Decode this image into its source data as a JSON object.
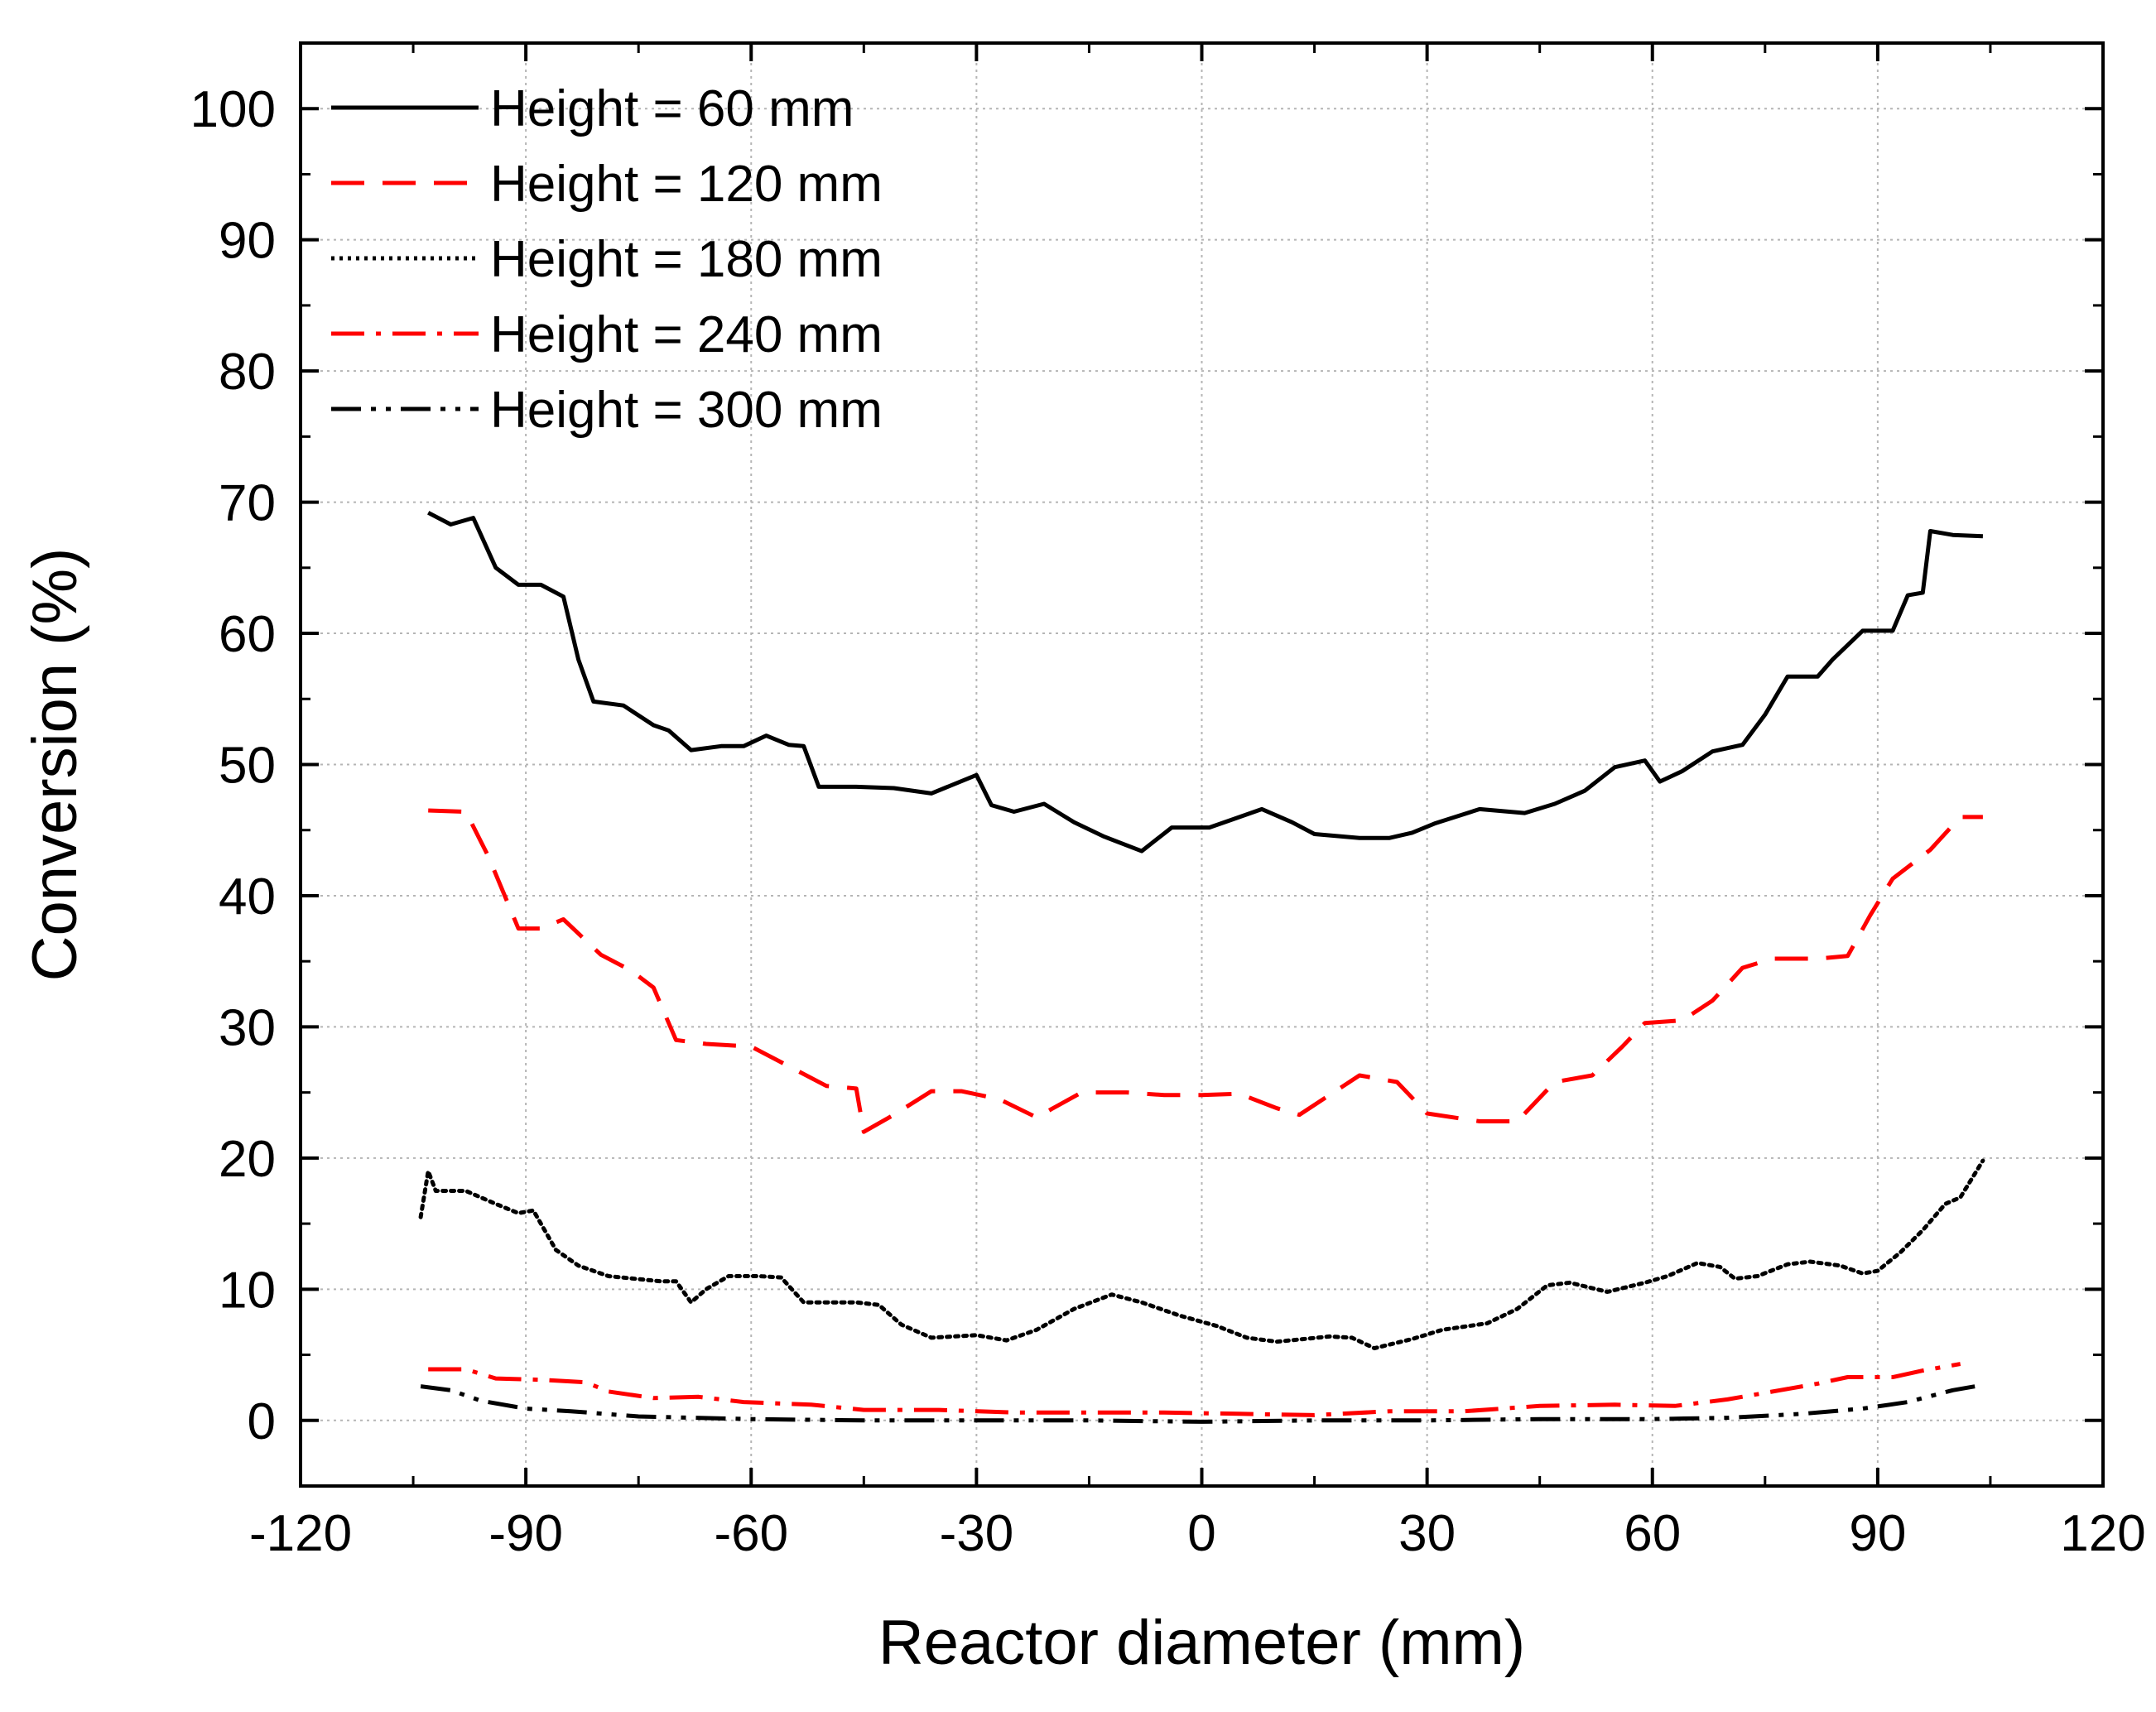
{
  "chart_data": {
    "type": "line",
    "title": "",
    "xlabel": "Reactor diameter (mm)",
    "ylabel": "Conversion (%)",
    "xlim": [
      -120,
      120
    ],
    "ylim": [
      -5,
      105
    ],
    "xticks": [
      "-120",
      "-90",
      "-60",
      "-30",
      "0",
      "30",
      "60",
      "90",
      "120"
    ],
    "yticks": [
      "0",
      "10",
      "20",
      "30",
      "40",
      "50",
      "60",
      "70",
      "80",
      "90",
      "100"
    ],
    "grid": true,
    "legend_position": "top-left",
    "series": [
      {
        "name": "Height = 60 mm",
        "color": "#000000",
        "style": "solid",
        "points": [
          [
            -103,
            69.2
          ],
          [
            -100,
            68.3
          ],
          [
            -97,
            68.8
          ],
          [
            -94,
            65
          ],
          [
            -91,
            63.7
          ],
          [
            -88,
            63.7
          ],
          [
            -85,
            62.8
          ],
          [
            -83,
            58
          ],
          [
            -81,
            54.8
          ],
          [
            -77,
            54.5
          ],
          [
            -73,
            53
          ],
          [
            -71,
            52.6
          ],
          [
            -68,
            51.1
          ],
          [
            -64,
            51.4
          ],
          [
            -61,
            51.4
          ],
          [
            -58,
            52.2
          ],
          [
            -55,
            51.5
          ],
          [
            -53,
            51.4
          ],
          [
            -51,
            48.3
          ],
          [
            -46,
            48.3
          ],
          [
            -41,
            48.2
          ],
          [
            -36,
            47.8
          ],
          [
            -30,
            49.2
          ],
          [
            -28,
            46.9
          ],
          [
            -25,
            46.4
          ],
          [
            -21,
            47
          ],
          [
            -17,
            45.6
          ],
          [
            -13,
            44.5
          ],
          [
            -8,
            43.4
          ],
          [
            -4,
            45.2
          ],
          [
            1,
            45.2
          ],
          [
            4,
            45.8
          ],
          [
            8,
            46.6
          ],
          [
            12,
            45.6
          ],
          [
            15,
            44.7
          ],
          [
            21,
            44.4
          ],
          [
            25,
            44.4
          ],
          [
            28,
            44.8
          ],
          [
            31,
            45.5
          ],
          [
            37,
            46.6
          ],
          [
            43,
            46.3
          ],
          [
            47,
            47
          ],
          [
            51,
            48
          ],
          [
            55,
            49.8
          ],
          [
            59,
            50.3
          ],
          [
            61,
            48.7
          ],
          [
            64,
            49.5
          ],
          [
            68,
            51
          ],
          [
            72,
            51.5
          ],
          [
            75,
            53.8
          ],
          [
            78,
            56.7
          ],
          [
            82,
            56.7
          ],
          [
            84,
            58
          ],
          [
            88,
            60.2
          ],
          [
            92,
            60.2
          ],
          [
            94,
            62.9
          ],
          [
            96,
            63.1
          ],
          [
            97,
            67.8
          ],
          [
            100,
            67.5
          ],
          [
            104,
            67.4
          ]
        ]
      },
      {
        "name": "Height = 120 mm",
        "color": "#ff0000",
        "style": "dashed",
        "points": [
          [
            -103,
            46.5
          ],
          [
            -98,
            46.4
          ],
          [
            -95,
            43
          ],
          [
            -91,
            37.5
          ],
          [
            -88,
            37.5
          ],
          [
            -85,
            38.2
          ],
          [
            -80,
            35.5
          ],
          [
            -76,
            34.3
          ],
          [
            -73,
            33
          ],
          [
            -70,
            29
          ],
          [
            -66,
            28.7
          ],
          [
            -60,
            28.5
          ],
          [
            -55,
            27
          ],
          [
            -50,
            25.5
          ],
          [
            -46,
            25.3
          ],
          [
            -45,
            22
          ],
          [
            -41,
            23.3
          ],
          [
            -36,
            25.1
          ],
          [
            -32,
            25.1
          ],
          [
            -27,
            24.5
          ],
          [
            -22,
            23.1
          ],
          [
            -16,
            25
          ],
          [
            -10,
            25
          ],
          [
            -5,
            24.8
          ],
          [
            0,
            24.8
          ],
          [
            5,
            24.9
          ],
          [
            10,
            23.8
          ],
          [
            13,
            23.3
          ],
          [
            17,
            24.8
          ],
          [
            21,
            26.3
          ],
          [
            26,
            25.8
          ],
          [
            30,
            23.4
          ],
          [
            37,
            22.8
          ],
          [
            42,
            22.8
          ],
          [
            47,
            25.8
          ],
          [
            52,
            26.3
          ],
          [
            56,
            28.5
          ],
          [
            59,
            30.3
          ],
          [
            64,
            30.5
          ],
          [
            68,
            32
          ],
          [
            72,
            34.5
          ],
          [
            76,
            35.2
          ],
          [
            82,
            35.2
          ],
          [
            86,
            35.4
          ],
          [
            89,
            38.5
          ],
          [
            92,
            41.3
          ],
          [
            97,
            43.5
          ],
          [
            101,
            46
          ],
          [
            104,
            46
          ]
        ]
      },
      {
        "name": "Height = 180 mm",
        "color": "#000000",
        "style": "dotted",
        "points": [
          [
            -104,
            15.5
          ],
          [
            -103,
            19
          ],
          [
            -102,
            17.5
          ],
          [
            -98,
            17.5
          ],
          [
            -94,
            16.5
          ],
          [
            -91,
            15.8
          ],
          [
            -89,
            16
          ],
          [
            -86,
            13
          ],
          [
            -83,
            11.8
          ],
          [
            -79,
            11
          ],
          [
            -72,
            10.6
          ],
          [
            -70,
            10.6
          ],
          [
            -68,
            9
          ],
          [
            -66,
            10
          ],
          [
            -63,
            11
          ],
          [
            -59,
            11
          ],
          [
            -56,
            10.9
          ],
          [
            -53,
            9
          ],
          [
            -46,
            9
          ],
          [
            -43,
            8.8
          ],
          [
            -40,
            7.3
          ],
          [
            -36,
            6.3
          ],
          [
            -30,
            6.5
          ],
          [
            -26,
            6.1
          ],
          [
            -22,
            6.9
          ],
          [
            -17,
            8.5
          ],
          [
            -12,
            9.6
          ],
          [
            -8,
            9
          ],
          [
            -3,
            8
          ],
          [
            2,
            7.2
          ],
          [
            6,
            6.3
          ],
          [
            10,
            6
          ],
          [
            17,
            6.4
          ],
          [
            20,
            6.3
          ],
          [
            23,
            5.5
          ],
          [
            28,
            6.2
          ],
          [
            32,
            6.9
          ],
          [
            38,
            7.4
          ],
          [
            42,
            8.5
          ],
          [
            46,
            10.3
          ],
          [
            49,
            10.5
          ],
          [
            54,
            9.8
          ],
          [
            59,
            10.5
          ],
          [
            62,
            11
          ],
          [
            66,
            12
          ],
          [
            69,
            11.7
          ],
          [
            71,
            10.8
          ],
          [
            74,
            11
          ],
          [
            78,
            11.9
          ],
          [
            81,
            12.1
          ],
          [
            85,
            11.8
          ],
          [
            88,
            11.2
          ],
          [
            90,
            11.4
          ],
          [
            93,
            12.8
          ],
          [
            96,
            14.5
          ],
          [
            99,
            16.5
          ],
          [
            101,
            17
          ],
          [
            104,
            19.8
          ]
        ]
      },
      {
        "name": "Height = 240 mm",
        "color": "#ff0000",
        "style": "dash-dot",
        "points": [
          [
            -103,
            3.9
          ],
          [
            -98,
            3.9
          ],
          [
            -94,
            3.2
          ],
          [
            -88,
            3.1
          ],
          [
            -82,
            2.9
          ],
          [
            -79,
            2.2
          ],
          [
            -73,
            1.7
          ],
          [
            -67,
            1.8
          ],
          [
            -61,
            1.4
          ],
          [
            -52,
            1.2
          ],
          [
            -45,
            0.8
          ],
          [
            -35,
            0.8
          ],
          [
            -25,
            0.6
          ],
          [
            -15,
            0.6
          ],
          [
            -5,
            0.6
          ],
          [
            5,
            0.5
          ],
          [
            15,
            0.4
          ],
          [
            25,
            0.7
          ],
          [
            35,
            0.7
          ],
          [
            45,
            1.1
          ],
          [
            55,
            1.2
          ],
          [
            63,
            1.1
          ],
          [
            70,
            1.6
          ],
          [
            77,
            2.3
          ],
          [
            82,
            2.8
          ],
          [
            86,
            3.3
          ],
          [
            92,
            3.3
          ],
          [
            96,
            3.8
          ],
          [
            101,
            4.3
          ]
        ]
      },
      {
        "name": "Height = 300 mm",
        "color": "#000000",
        "style": "dash-dot-dot",
        "points": [
          [
            -104,
            2.6
          ],
          [
            -100,
            2.3
          ],
          [
            -96,
            1.5
          ],
          [
            -90,
            0.9
          ],
          [
            -84,
            0.7
          ],
          [
            -75,
            0.3
          ],
          [
            -60,
            0.1
          ],
          [
            -45,
            0
          ],
          [
            -30,
            0
          ],
          [
            -15,
            0
          ],
          [
            0,
            -0.1
          ],
          [
            15,
            0
          ],
          [
            30,
            0
          ],
          [
            45,
            0.1
          ],
          [
            60,
            0.1
          ],
          [
            70,
            0.2
          ],
          [
            80,
            0.5
          ],
          [
            88,
            0.9
          ],
          [
            94,
            1.4
          ],
          [
            100,
            2.3
          ],
          [
            104,
            2.7
          ]
        ]
      }
    ]
  }
}
